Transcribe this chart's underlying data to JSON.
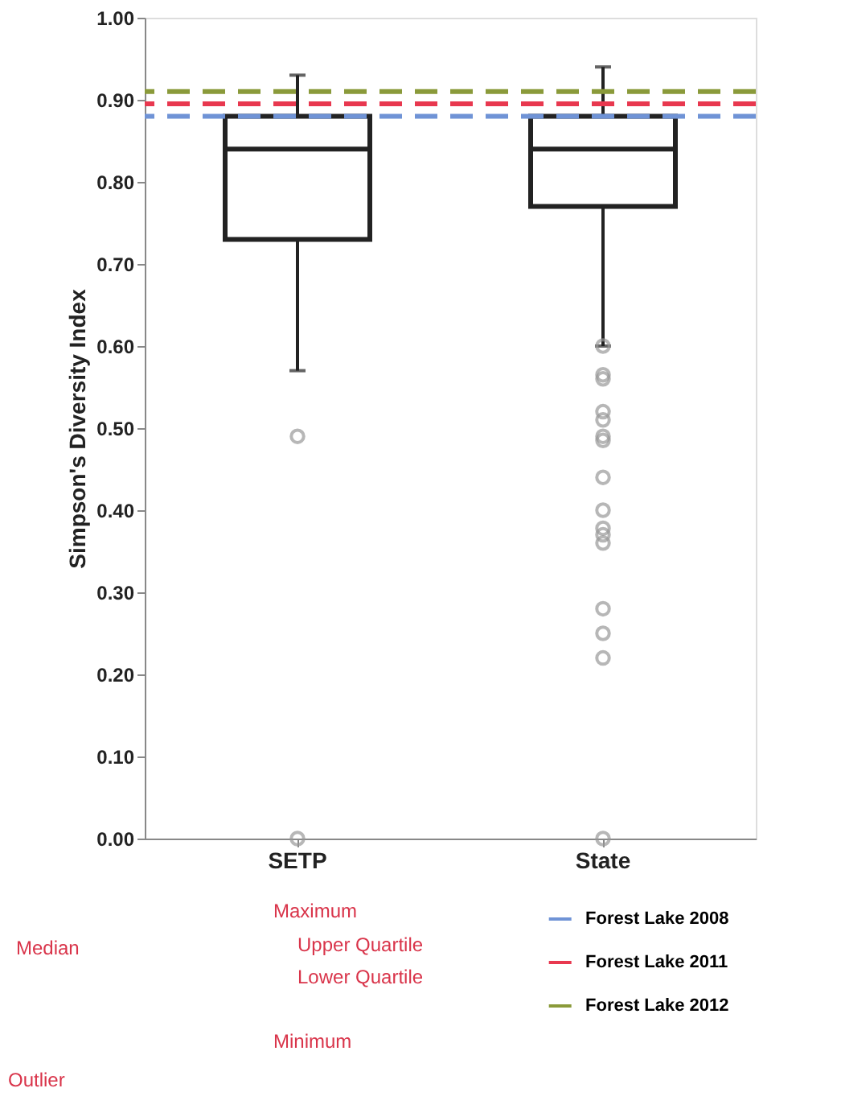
{
  "chart_data": {
    "type": "box",
    "ylabel": "Simpson's Diversity Index",
    "categories": [
      "SETP",
      "State"
    ],
    "boxes": [
      {
        "low": 0.57,
        "q1": 0.73,
        "median": 0.84,
        "q3": 0.88,
        "high": 0.93,
        "outliers": [
          0.49,
          0.0
        ]
      },
      {
        "low": 0.6,
        "q1": 0.77,
        "median": 0.84,
        "q3": 0.88,
        "high": 0.94,
        "outliers": [
          0.6,
          0.565,
          0.56,
          0.52,
          0.51,
          0.49,
          0.485,
          0.44,
          0.4,
          0.378,
          0.37,
          0.36,
          0.28,
          0.25,
          0.22,
          0.0
        ]
      }
    ],
    "ylim": [
      0,
      1
    ],
    "yticks": [
      {
        "value": 0,
        "label": "0.00"
      },
      {
        "value": 0.1,
        "label": "0.10"
      },
      {
        "value": 0.2,
        "label": "0.20"
      },
      {
        "value": 0.3,
        "label": "0.30"
      },
      {
        "value": 0.4,
        "label": "0.40"
      },
      {
        "value": 0.5,
        "label": "0.50"
      },
      {
        "value": 0.6,
        "label": "0.60"
      },
      {
        "value": 0.7,
        "label": "0.70"
      },
      {
        "value": 0.8,
        "label": "0.80"
      },
      {
        "value": 0.9,
        "label": "0.90"
      },
      {
        "value": 1,
        "label": "1.00"
      }
    ],
    "ref_lines": [
      {
        "axis": "y",
        "value": 0.88,
        "label": "Forest Lake 2008",
        "color": "#6f93d6",
        "line_style": "dashed"
      },
      {
        "axis": "y",
        "value": 0.895,
        "label": "Forest Lake 2011",
        "color": "#e8384f",
        "line_style": "dashed"
      },
      {
        "axis": "y",
        "value": 0.91,
        "label": "Forest Lake 2012",
        "color": "#8a9a3a",
        "line_style": "dashed"
      }
    ],
    "annotations": [
      "Maximum",
      "Upper Quartile",
      "Median",
      "Lower Quartile",
      "Minimum",
      "Outlier"
    ],
    "legend": "bottom right",
    "grid": false
  }
}
